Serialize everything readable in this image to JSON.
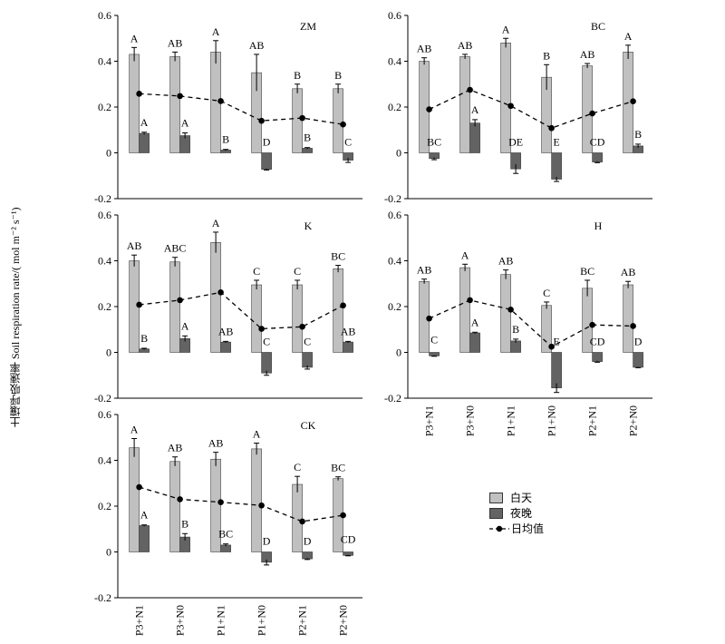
{
  "figure": {
    "ylabel": "土壤呼吸速率 Soil respiration rate/( mol m⁻² s⁻¹)",
    "legend": {
      "day": "白天",
      "night": "夜晚",
      "mean": "日均值"
    },
    "colors": {
      "day": "#c0c0c0",
      "night": "#636363",
      "mean": "#000000"
    }
  },
  "chart_data": [
    {
      "type": "bar",
      "title": "ZM",
      "categories": [
        "P3+N1",
        "P3+N0",
        "P1+N1",
        "P1+N0",
        "P2+N1",
        "P2+N0"
      ],
      "ylim": [
        -0.2,
        0.6
      ],
      "yticks": [
        "-0.2",
        "0",
        "0.2",
        "0.4",
        "0.6"
      ],
      "series": [
        {
          "name": "白天",
          "values": [
            0.43,
            0.42,
            0.44,
            0.35,
            0.28,
            0.28
          ],
          "errors": [
            0.03,
            0.02,
            0.05,
            0.08,
            0.02,
            0.02
          ],
          "labels": [
            "A",
            "AB",
            "A",
            "AB",
            "B",
            "B"
          ]
        },
        {
          "name": "夜晚",
          "values": [
            0.085,
            0.075,
            0.012,
            -0.072,
            0.02,
            -0.032
          ],
          "errors": [
            0.005,
            0.012,
            0.003,
            0.003,
            0.003,
            0.01
          ],
          "labels": [
            "A",
            "A",
            "B",
            "D",
            "B",
            "C"
          ]
        },
        {
          "name": "日均值",
          "values": [
            0.258,
            0.248,
            0.226,
            0.14,
            0.152,
            0.124
          ]
        }
      ]
    },
    {
      "type": "bar",
      "title": "BC",
      "categories": [
        "P3+N1",
        "P3+N0",
        "P1+N1",
        "P1+N0",
        "P2+N1",
        "P2+N0"
      ],
      "ylim": [
        -0.2,
        0.6
      ],
      "yticks": [
        "-0.2",
        "0",
        "0.2",
        "0.4",
        "0.6"
      ],
      "series": [
        {
          "name": "白天",
          "values": [
            0.4,
            0.42,
            0.48,
            0.33,
            0.38,
            0.44
          ],
          "errors": [
            0.015,
            0.01,
            0.02,
            0.055,
            0.01,
            0.03
          ],
          "labels": [
            "AB",
            "AB",
            "A",
            "B",
            "AB",
            "A"
          ]
        },
        {
          "name": "夜晚",
          "values": [
            -0.025,
            0.13,
            -0.07,
            -0.115,
            -0.04,
            0.03
          ],
          "errors": [
            0.005,
            0.015,
            0.02,
            0.01,
            0.003,
            0.008
          ],
          "labels": [
            "BC",
            "A",
            "DE",
            "E",
            "CD",
            "B"
          ]
        },
        {
          "name": "日均值",
          "values": [
            0.19,
            0.275,
            0.205,
            0.108,
            0.172,
            0.225
          ]
        }
      ]
    },
    {
      "type": "bar",
      "title": "K",
      "categories": [
        "P3+N1",
        "P3+N0",
        "P1+N1",
        "P1+N0",
        "P2+N1",
        "P2+N0"
      ],
      "ylim": [
        -0.2,
        0.6
      ],
      "yticks": [
        "-0.2",
        "0",
        "0.2",
        "0.4",
        "0.6"
      ],
      "series": [
        {
          "name": "白天",
          "values": [
            0.4,
            0.395,
            0.48,
            0.295,
            0.295,
            0.365
          ],
          "errors": [
            0.025,
            0.02,
            0.045,
            0.02,
            0.02,
            0.015
          ],
          "labels": [
            "AB",
            "ABC",
            "A",
            "C",
            "C",
            "BC"
          ]
        },
        {
          "name": "夜晚",
          "values": [
            0.015,
            0.06,
            0.045,
            -0.09,
            -0.065,
            0.045
          ],
          "errors": [
            0.003,
            0.012,
            0.003,
            0.01,
            0.008,
            0.003
          ],
          "labels": [
            "B",
            "A",
            "AB",
            "C",
            "C",
            "AB"
          ]
        },
        {
          "name": "日均值",
          "values": [
            0.208,
            0.228,
            0.262,
            0.103,
            0.112,
            0.205
          ]
        }
      ]
    },
    {
      "type": "bar",
      "title": "H",
      "categories": [
        "P3+N1",
        "P3+N0",
        "P1+N1",
        "P1+N0",
        "P2+N1",
        "P2+N0"
      ],
      "ylim": [
        -0.2,
        0.6
      ],
      "yticks": [
        "-0.2",
        "0",
        "0.2",
        "0.4",
        "0.6"
      ],
      "series": [
        {
          "name": "白天",
          "values": [
            0.31,
            0.37,
            0.34,
            0.205,
            0.28,
            0.295
          ],
          "errors": [
            0.01,
            0.015,
            0.02,
            0.015,
            0.035,
            0.015
          ],
          "labels": [
            "AB",
            "A",
            "AB",
            "C",
            "BC",
            "AB"
          ]
        },
        {
          "name": "夜晚",
          "values": [
            -0.015,
            0.085,
            0.05,
            -0.155,
            -0.04,
            -0.065
          ],
          "errors": [
            0.002,
            0.003,
            0.008,
            0.02,
            0.003,
            0.002
          ],
          "labels": [
            "C",
            "A",
            "B",
            "E",
            "CD",
            "D"
          ]
        },
        {
          "name": "日均值",
          "values": [
            0.148,
            0.228,
            0.187,
            0.025,
            0.12,
            0.115
          ]
        }
      ]
    },
    {
      "type": "bar",
      "title": "CK",
      "categories": [
        "P3+N1",
        "P3+N0",
        "P1+N1",
        "P1+N0",
        "P2+N1",
        "P2+N0"
      ],
      "ylim": [
        -0.2,
        0.6
      ],
      "yticks": [
        "-0.2",
        "0",
        "0.2",
        "0.4",
        "0.6"
      ],
      "series": [
        {
          "name": "白天",
          "values": [
            0.455,
            0.395,
            0.405,
            0.45,
            0.295,
            0.32
          ],
          "errors": [
            0.04,
            0.02,
            0.03,
            0.025,
            0.035,
            0.008
          ],
          "labels": [
            "A",
            "AB",
            "AB",
            "A",
            "C",
            "BC"
          ]
        },
        {
          "name": "夜晚",
          "values": [
            0.115,
            0.065,
            0.03,
            -0.045,
            -0.03,
            -0.015
          ],
          "errors": [
            0.003,
            0.015,
            0.005,
            0.012,
            0.003,
            0.002
          ],
          "labels": [
            "A",
            "B",
            "BC",
            "D",
            "D",
            "CD"
          ]
        },
        {
          "name": "日均值",
          "values": [
            0.283,
            0.23,
            0.217,
            0.203,
            0.133,
            0.16
          ]
        }
      ]
    }
  ]
}
